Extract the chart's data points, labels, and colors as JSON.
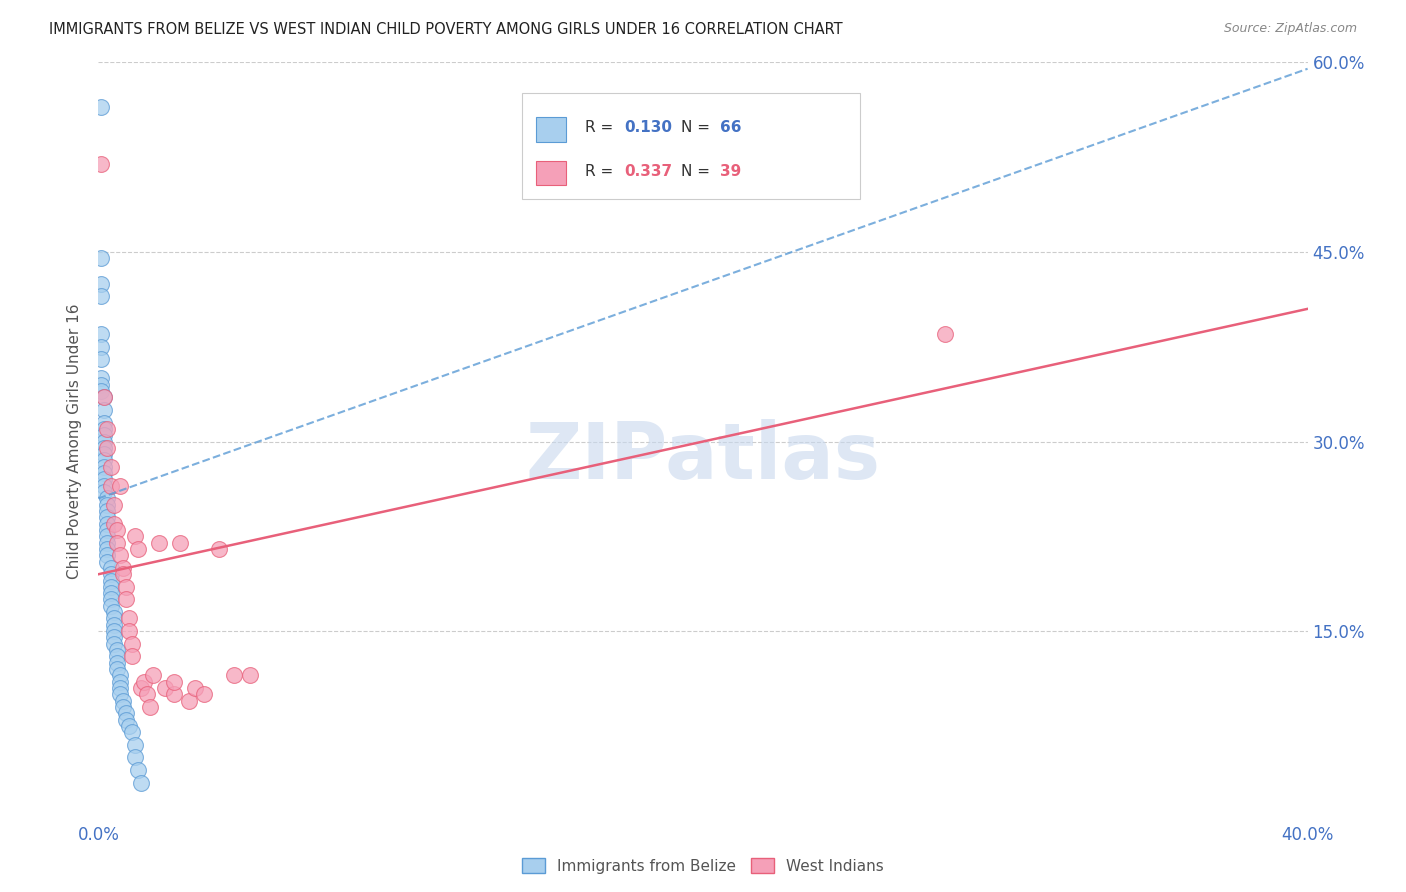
{
  "title": "IMMIGRANTS FROM BELIZE VS WEST INDIAN CHILD POVERTY AMONG GIRLS UNDER 16 CORRELATION CHART",
  "source": "Source: ZipAtlas.com",
  "ylabel": "Child Poverty Among Girls Under 16",
  "xlim": [
    0.0,
    0.4
  ],
  "ylim": [
    0.0,
    0.6
  ],
  "legend1_label": "Immigrants from Belize",
  "legend2_label": "West Indians",
  "R1": 0.13,
  "N1": 66,
  "R2": 0.337,
  "N2": 39,
  "color1": "#A8CFEE",
  "color2": "#F5A0B8",
  "line1_color": "#5B9BD5",
  "line2_color": "#E8607A",
  "watermark_color": "#C8D8EE",
  "grid_color": "#CCCCCC",
  "tick_color": "#4472C4",
  "title_color": "#222222",
  "source_color": "#888888",
  "ylabel_color": "#555555",
  "blue_scatter_x": [
    0.001,
    0.001,
    0.001,
    0.001,
    0.001,
    0.001,
    0.001,
    0.001,
    0.001,
    0.001,
    0.002,
    0.002,
    0.002,
    0.002,
    0.002,
    0.002,
    0.002,
    0.002,
    0.002,
    0.002,
    0.002,
    0.002,
    0.002,
    0.002,
    0.003,
    0.003,
    0.003,
    0.003,
    0.003,
    0.003,
    0.003,
    0.003,
    0.003,
    0.003,
    0.003,
    0.004,
    0.004,
    0.004,
    0.004,
    0.004,
    0.004,
    0.004,
    0.005,
    0.005,
    0.005,
    0.005,
    0.005,
    0.005,
    0.006,
    0.006,
    0.006,
    0.006,
    0.007,
    0.007,
    0.007,
    0.007,
    0.008,
    0.008,
    0.009,
    0.009,
    0.01,
    0.011,
    0.012,
    0.012,
    0.013,
    0.014
  ],
  "blue_scatter_y": [
    0.565,
    0.445,
    0.425,
    0.415,
    0.385,
    0.375,
    0.365,
    0.35,
    0.345,
    0.34,
    0.335,
    0.325,
    0.315,
    0.31,
    0.305,
    0.3,
    0.295,
    0.29,
    0.285,
    0.28,
    0.275,
    0.27,
    0.265,
    0.26,
    0.255,
    0.25,
    0.245,
    0.24,
    0.235,
    0.23,
    0.225,
    0.22,
    0.215,
    0.21,
    0.205,
    0.2,
    0.195,
    0.19,
    0.185,
    0.18,
    0.175,
    0.17,
    0.165,
    0.16,
    0.155,
    0.15,
    0.145,
    0.14,
    0.135,
    0.13,
    0.125,
    0.12,
    0.115,
    0.11,
    0.105,
    0.1,
    0.095,
    0.09,
    0.085,
    0.08,
    0.075,
    0.07,
    0.06,
    0.05,
    0.04,
    0.03
  ],
  "pink_scatter_x": [
    0.001,
    0.002,
    0.003,
    0.003,
    0.004,
    0.004,
    0.005,
    0.005,
    0.006,
    0.006,
    0.007,
    0.007,
    0.008,
    0.008,
    0.009,
    0.009,
    0.01,
    0.01,
    0.011,
    0.011,
    0.012,
    0.013,
    0.014,
    0.015,
    0.016,
    0.017,
    0.018,
    0.02,
    0.022,
    0.025,
    0.025,
    0.027,
    0.03,
    0.032,
    0.035,
    0.04,
    0.045,
    0.05,
    0.28
  ],
  "pink_scatter_y": [
    0.52,
    0.335,
    0.31,
    0.295,
    0.28,
    0.265,
    0.25,
    0.235,
    0.23,
    0.22,
    0.265,
    0.21,
    0.2,
    0.195,
    0.185,
    0.175,
    0.16,
    0.15,
    0.14,
    0.13,
    0.225,
    0.215,
    0.105,
    0.11,
    0.1,
    0.09,
    0.115,
    0.22,
    0.105,
    0.1,
    0.11,
    0.22,
    0.095,
    0.105,
    0.1,
    0.215,
    0.115,
    0.115,
    0.385
  ],
  "blue_line_x0": 0.0,
  "blue_line_y0": 0.255,
  "blue_line_x1": 0.4,
  "blue_line_y1": 0.595,
  "pink_line_x0": 0.0,
  "pink_line_y0": 0.195,
  "pink_line_x1": 0.4,
  "pink_line_y1": 0.405
}
